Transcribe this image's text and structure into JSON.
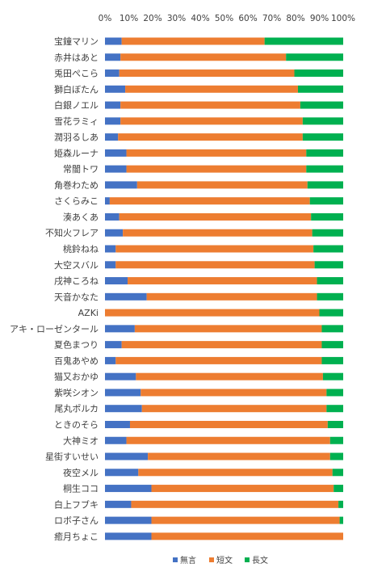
{
  "chart_data": {
    "type": "bar",
    "orientation": "horizontal",
    "stacked": "percent",
    "categories": [
      "宝鐘マリン",
      "赤井はあと",
      "兎田ぺこら",
      "獅白ぼたん",
      "白銀ノエル",
      "雪花ラミィ",
      "潤羽るしあ",
      "姫森ルーナ",
      "常闇トワ",
      "角巻わため",
      "さくらみこ",
      "湊あくあ",
      "不知火フレア",
      "桃鈴ねね",
      "大空スバル",
      "戌神ころね",
      "天音かなた",
      "AZKi",
      "アキ・ローゼンタール",
      "夏色まつり",
      "百鬼あやめ",
      "猫又おかゆ",
      "紫咲シオン",
      "尾丸ポルカ",
      "ときのそら",
      "大神ミオ",
      "星街すいせい",
      "夜空メル",
      "桐生ココ",
      "白上フブキ",
      "ロボ子さん",
      "癒月ちょこ"
    ],
    "series": [
      {
        "name": "無言",
        "color": "#4472C4",
        "values": [
          7,
          6.5,
          6,
          8.5,
          6.5,
          6.5,
          5.5,
          9,
          9,
          13.5,
          2,
          6,
          7.5,
          4.5,
          4.5,
          9.5,
          17.5,
          0,
          12.5,
          7,
          4.5,
          13,
          15,
          15.5,
          10.5,
          9,
          18,
          14,
          19.5,
          11,
          19.5,
          19.5
        ]
      },
      {
        "name": "短文",
        "color": "#ED7D31",
        "values": [
          60,
          69.5,
          73.5,
          72.5,
          75.5,
          76.5,
          77.5,
          75.5,
          75.5,
          71.5,
          84,
          80.5,
          79.5,
          83,
          83.5,
          79.5,
          71.5,
          90,
          78.5,
          84,
          86.5,
          78.5,
          78,
          77.5,
          83,
          85.5,
          76.5,
          81.5,
          76.5,
          87,
          79,
          80.5
        ]
      },
      {
        "name": "長文",
        "color": "#00B050",
        "values": [
          33,
          24,
          20.5,
          19,
          18,
          17,
          17,
          15.5,
          15.5,
          15,
          14,
          13.5,
          13,
          12.5,
          12,
          11,
          11,
          10,
          9,
          9,
          9,
          8.5,
          7,
          7,
          6.5,
          5.5,
          5.5,
          4.5,
          4,
          2,
          1.5,
          0
        ]
      }
    ],
    "xaxis": {
      "min": 0,
      "max": 100,
      "step": 10,
      "tick_suffix": "%",
      "position": "top"
    },
    "grid": false,
    "legend": {
      "position": "bottom"
    }
  }
}
